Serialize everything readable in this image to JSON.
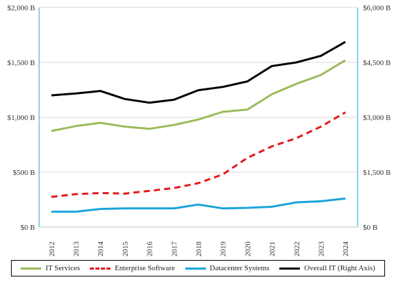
{
  "chart_data": {
    "type": "line",
    "title": "",
    "xlabel": "",
    "ylabel": "",
    "ylabel_right": "",
    "categories": [
      "2012",
      "2013",
      "2014",
      "2015",
      "2016",
      "2017",
      "2018",
      "2019",
      "2020",
      "2021",
      "2022",
      "2023",
      "2024"
    ],
    "ylim": [
      0,
      2000
    ],
    "ylim_right": [
      0,
      6000
    ],
    "y_ticks": [
      "$0 B",
      "$500 B",
      "$1,000 B",
      "$1,500 B",
      "$2,000 B"
    ],
    "y_ticks_right": [
      "$0 B",
      "$1,500 B",
      "$3,000 B",
      "$4,500 B",
      "$6,000 B"
    ],
    "grid": true,
    "legend_position": "bottom",
    "series": [
      {
        "name": "IT Services",
        "axis": "left",
        "color": "#9BBB59",
        "style": "solid",
        "values": [
          875,
          920,
          950,
          915,
          895,
          930,
          980,
          1050,
          1070,
          1210,
          1305,
          1385,
          1520
        ]
      },
      {
        "name": "Enterprise Software",
        "axis": "left",
        "color": "#E31A1C",
        "style": "dashed",
        "values": [
          275,
          300,
          310,
          305,
          330,
          355,
          400,
          480,
          630,
          735,
          810,
          915,
          1045
        ]
      },
      {
        "name": "Datacenter Systems",
        "axis": "left",
        "color": "#1AA3DB",
        "style": "solid",
        "values": [
          140,
          140,
          165,
          170,
          170,
          170,
          205,
          170,
          175,
          185,
          225,
          235,
          260
        ]
      },
      {
        "name": "Overall IT (Right Axis)",
        "axis": "right",
        "color": "#000000",
        "style": "solid",
        "values": [
          3600,
          3650,
          3720,
          3500,
          3400,
          3480,
          3740,
          3830,
          3980,
          4400,
          4500,
          4680,
          5060
        ]
      }
    ]
  }
}
